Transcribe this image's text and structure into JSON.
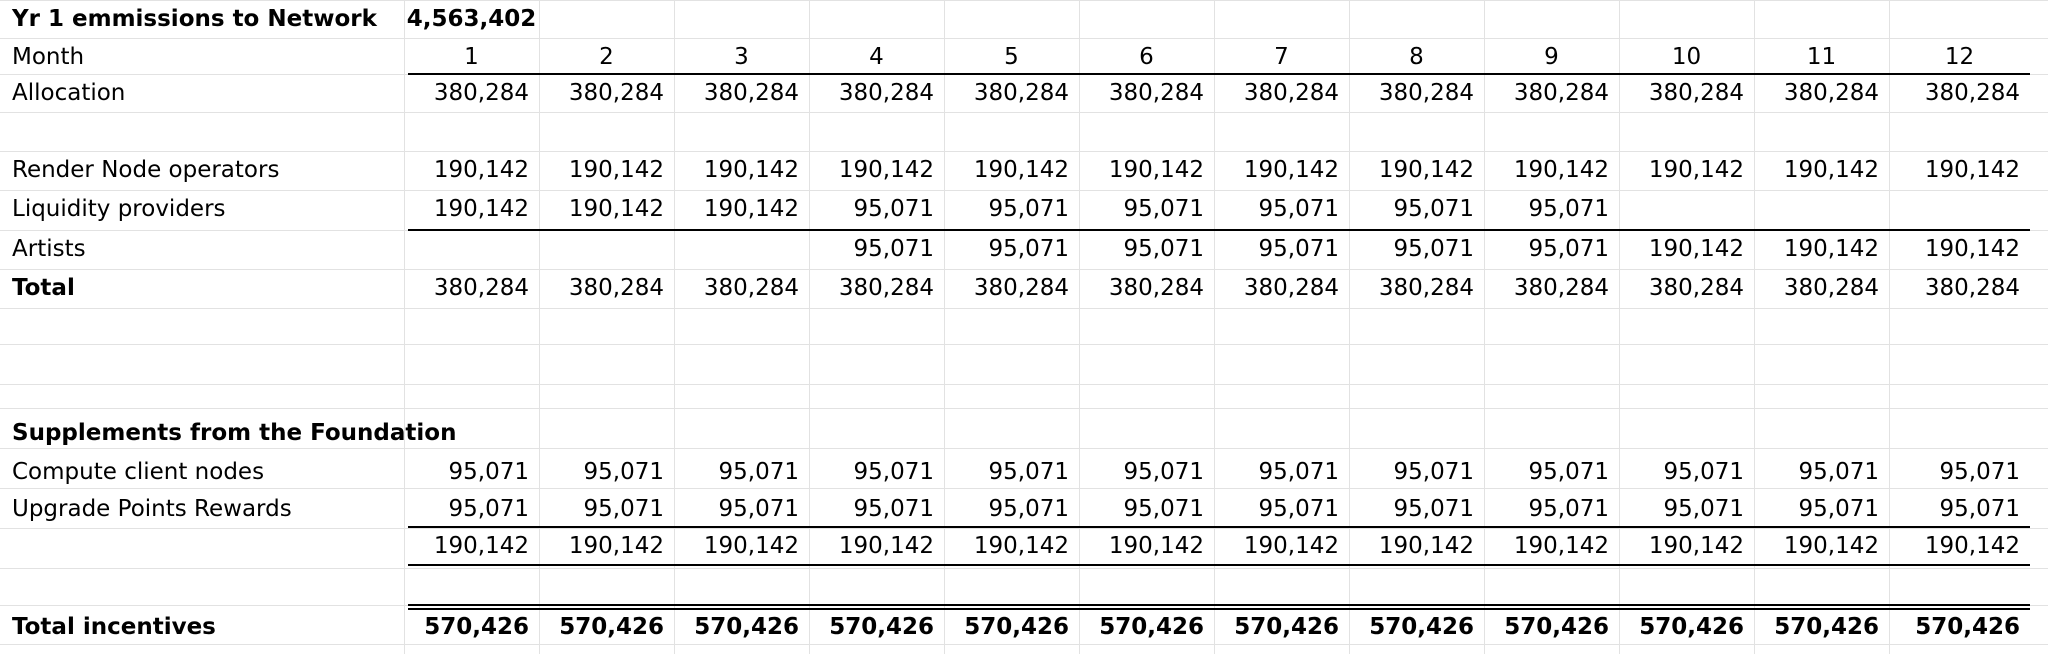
{
  "title_row": {
    "label": "Yr 1 emmissions to Network",
    "value": "4,563,402"
  },
  "month_row": {
    "label": "Month",
    "months": [
      "1",
      "2",
      "3",
      "4",
      "5",
      "6",
      "7",
      "8",
      "9",
      "10",
      "11",
      "12"
    ]
  },
  "allocation_row": {
    "label": "Allocation",
    "values": [
      "380,284",
      "380,284",
      "380,284",
      "380,284",
      "380,284",
      "380,284",
      "380,284",
      "380,284",
      "380,284",
      "380,284",
      "380,284",
      "380,284"
    ]
  },
  "render_node_row": {
    "label": "Render Node operators",
    "values": [
      "190,142",
      "190,142",
      "190,142",
      "190,142",
      "190,142",
      "190,142",
      "190,142",
      "190,142",
      "190,142",
      "190,142",
      "190,142",
      "190,142"
    ]
  },
  "liquidity_row": {
    "label": "Liquidity providers",
    "values": [
      "190,142",
      "190,142",
      "190,142",
      "95,071",
      "95,071",
      "95,071",
      "95,071",
      "95,071",
      "95,071",
      "",
      "",
      ""
    ]
  },
  "artists_row": {
    "label": "Artists",
    "values": [
      "",
      "",
      "",
      "95,071",
      "95,071",
      "95,071",
      "95,071",
      "95,071",
      "95,071",
      "190,142",
      "190,142",
      "190,142"
    ]
  },
  "total_row": {
    "label": "Total",
    "values": [
      "380,284",
      "380,284",
      "380,284",
      "380,284",
      "380,284",
      "380,284",
      "380,284",
      "380,284",
      "380,284",
      "380,284",
      "380,284",
      "380,284"
    ]
  },
  "supplements_heading": {
    "label": "Supplements from the Foundation"
  },
  "compute_row": {
    "label": "Compute client nodes",
    "values": [
      "95,071",
      "95,071",
      "95,071",
      "95,071",
      "95,071",
      "95,071",
      "95,071",
      "95,071",
      "95,071",
      "95,071",
      "95,071",
      "95,071"
    ]
  },
  "upgrade_row": {
    "label": "Upgrade Points Rewards",
    "values": [
      "95,071",
      "95,071",
      "95,071",
      "95,071",
      "95,071",
      "95,071",
      "95,071",
      "95,071",
      "95,071",
      "95,071",
      "95,071",
      "95,071"
    ]
  },
  "supplements_total_row": {
    "values": [
      "190,142",
      "190,142",
      "190,142",
      "190,142",
      "190,142",
      "190,142",
      "190,142",
      "190,142",
      "190,142",
      "190,142",
      "190,142",
      "190,142"
    ]
  },
  "total_incentives_row": {
    "label": "Total incentives",
    "values": [
      "570,426",
      "570,426",
      "570,426",
      "570,426",
      "570,426",
      "570,426",
      "570,426",
      "570,426",
      "570,426",
      "570,426",
      "570,426",
      "570,426"
    ]
  }
}
